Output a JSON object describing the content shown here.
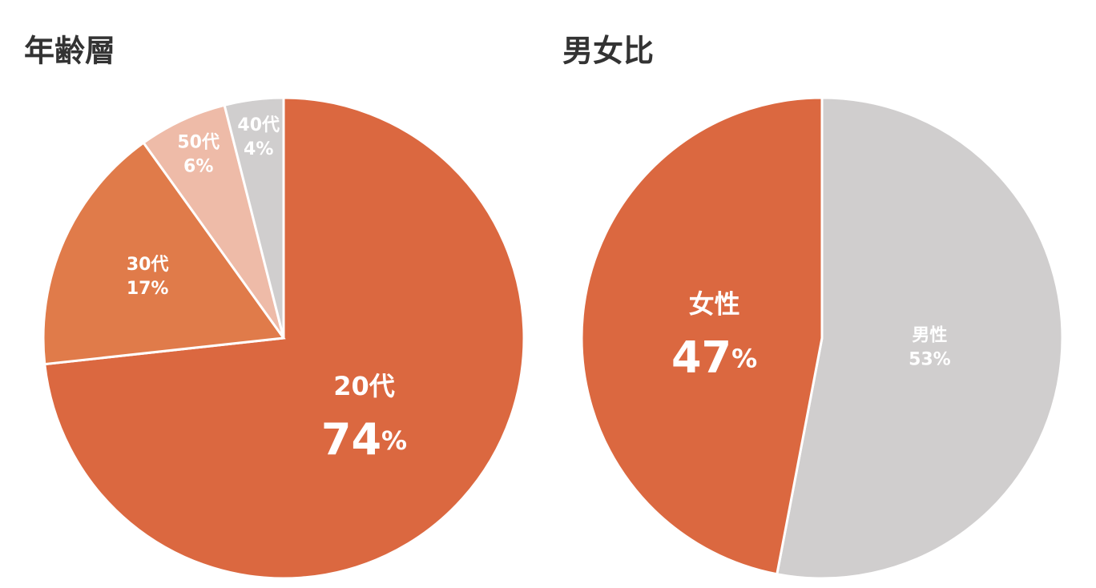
{
  "chart_data": [
    {
      "type": "pie",
      "title": "年齢層",
      "categories": [
        "20代",
        "30代",
        "50代",
        "40代"
      ],
      "values": [
        74,
        17,
        6,
        4
      ],
      "value_labels": [
        "74%",
        "17%",
        "6%",
        "4%"
      ],
      "colors": [
        "#db6840",
        "#e07b4a",
        "#eebba8",
        "#d0cece"
      ]
    },
    {
      "type": "pie",
      "title": "男女比",
      "categories": [
        "男性",
        "女性"
      ],
      "values": [
        53,
        47
      ],
      "value_labels": [
        "53%",
        "47%"
      ],
      "colors": [
        "#d0cece",
        "#db6840"
      ]
    }
  ]
}
